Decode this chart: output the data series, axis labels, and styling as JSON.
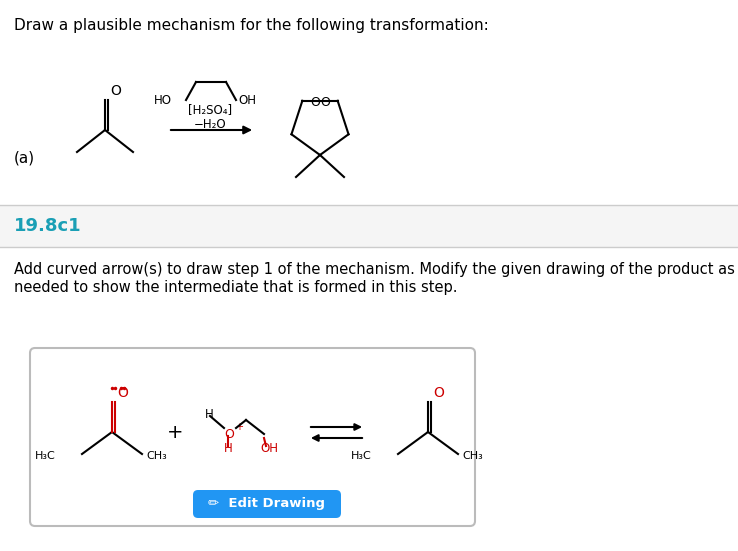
{
  "bg_color": "#f5f5f5",
  "white": "#ffffff",
  "black": "#000000",
  "red_color": "#cc0000",
  "blue_color": "#2196F3",
  "teal_color": "#1a9fb5",
  "title_text": "Draw a plausible mechanism for the following transformation:",
  "label_a": "(a)",
  "section_id": "19.8c1",
  "instruction_line1": "Add curved arrow(s) to draw step 1 of the mechanism. Modify the given drawing of the product as",
  "instruction_line2": "needed to show the intermediate that is formed in this step.",
  "edit_btn_text": "✏  Edit Drawing",
  "edit_btn_color": "#2196F3",
  "edit_btn_text_color": "#ffffff",
  "divider_color": "#cccccc"
}
